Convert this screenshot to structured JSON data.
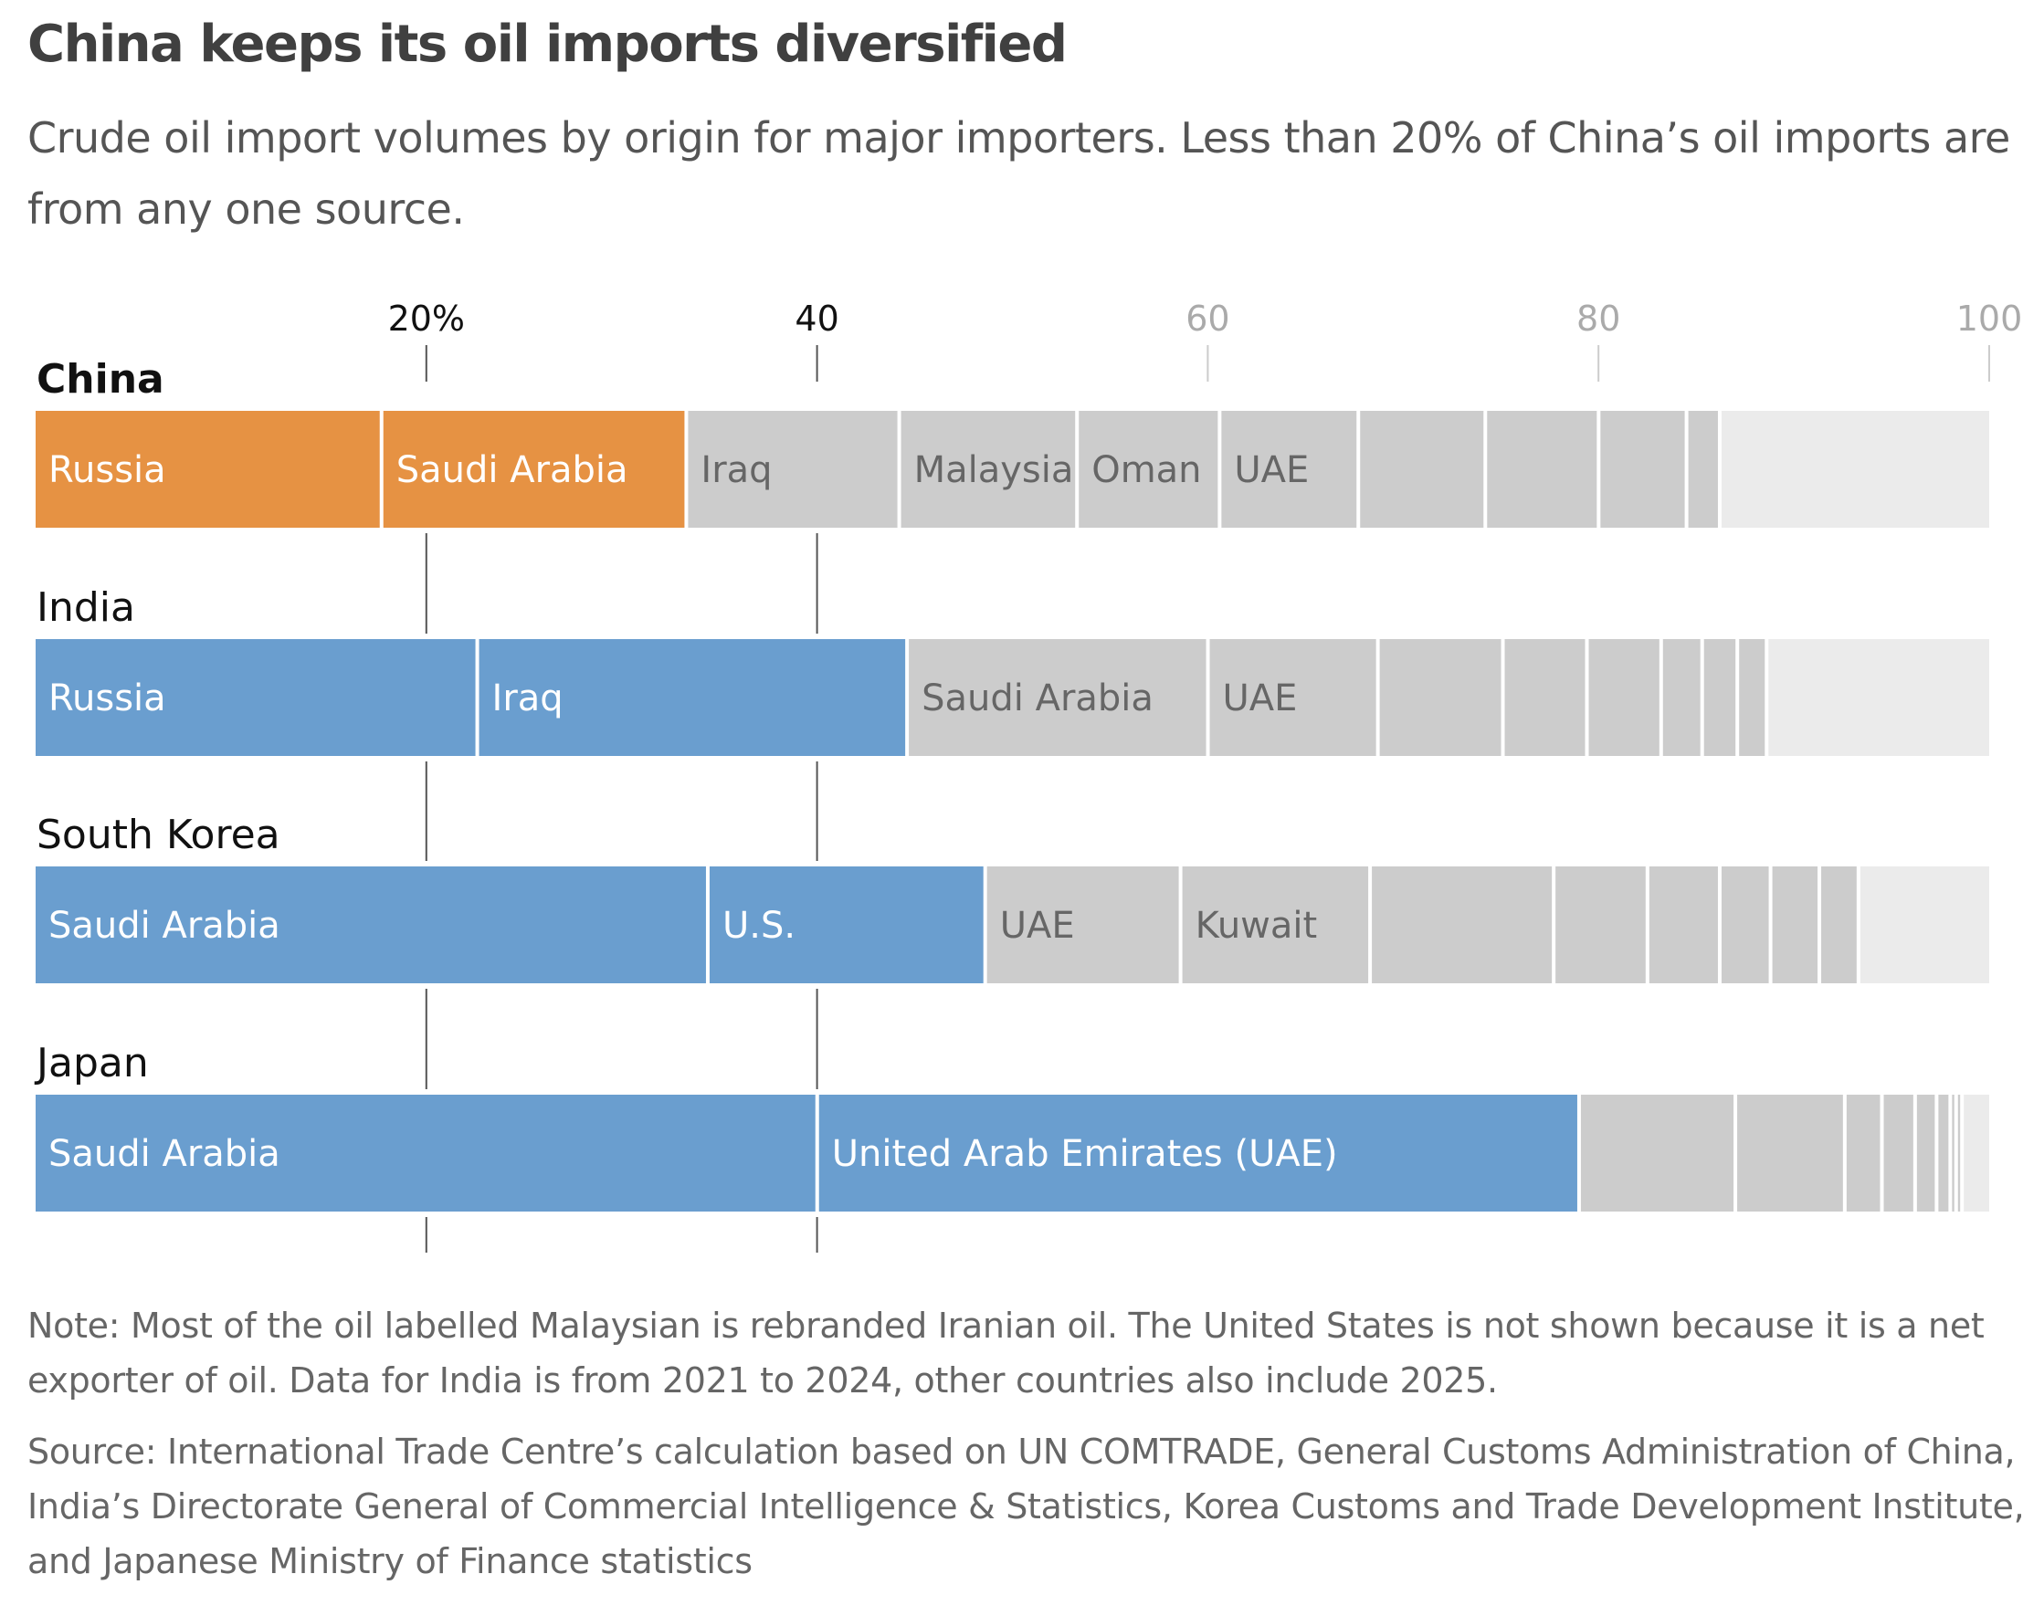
{
  "header": {
    "title": "China keeps its oil imports diversified",
    "subtitle": "Crude oil import volumes by origin for major importers. Less than 20% of China’s oil imports are from any one source."
  },
  "footer": {
    "note": "Note: Most of the oil labelled Malaysian is rebranded Iranian oil. The United States is not shown because it is a net exporter of oil. Data for India is from 2021 to 2024, other countries also include 2025.",
    "source": "Source: International Trade Centre’s calculation based on UN COMTRADE, General Customs Administration of China, India’s Directorate General of Commercial Intelligence & Statistics, Korea Customs and Trade Development Institute, and Japanese Ministry of Finance statistics"
  },
  "colors": {
    "china_highlight": "#E69243",
    "other_highlight": "#6A9ECF",
    "other_source": "#CCCCCC",
    "remainder": "#EBEBEB",
    "label_on_highlight": "#FFFFFF",
    "label_on_gray": "#666666",
    "grid_dark": "#555555",
    "grid_light": "#CCCCCC"
  },
  "chart_data": {
    "type": "bar",
    "subtype": "stacked-horizontal-100%",
    "title": "China keeps its oil imports diversified",
    "xlabel": "",
    "ylabel": "",
    "xlim": [
      0,
      100
    ],
    "x_unit": "% of crude oil imports",
    "ticks": [
      {
        "value": 20,
        "label": "20%",
        "emphasis": true
      },
      {
        "value": 40,
        "label": "40",
        "emphasis": true
      },
      {
        "value": 60,
        "label": "60",
        "emphasis": false
      },
      {
        "value": 80,
        "label": "80",
        "emphasis": false
      },
      {
        "value": 100,
        "label": "100",
        "emphasis": false
      }
    ],
    "grid": true,
    "series": [
      {
        "name": "China",
        "bold": true,
        "segments": [
          {
            "label": "Russia",
            "value": 17.8,
            "kind": "highlight"
          },
          {
            "label": "Saudi Arabia",
            "value": 15.6,
            "kind": "highlight"
          },
          {
            "label": "Iraq",
            "value": 10.9,
            "kind": "other"
          },
          {
            "label": "Malaysia",
            "value": 9.1,
            "kind": "other"
          },
          {
            "label": "Oman",
            "value": 7.3,
            "kind": "other"
          },
          {
            "label": "UAE",
            "value": 7.1,
            "kind": "other"
          },
          {
            "label": "",
            "value": 6.5,
            "kind": "other"
          },
          {
            "label": "",
            "value": 5.8,
            "kind": "other"
          },
          {
            "label": "",
            "value": 4.5,
            "kind": "other"
          },
          {
            "label": "",
            "value": 1.7,
            "kind": "other"
          },
          {
            "label": "",
            "value": 13.7,
            "kind": "rest"
          }
        ]
      },
      {
        "name": "India",
        "bold": false,
        "segments": [
          {
            "label": "Russia",
            "value": 22.7,
            "kind": "highlight"
          },
          {
            "label": "Iraq",
            "value": 22.0,
            "kind": "highlight"
          },
          {
            "label": "Saudi Arabia",
            "value": 15.4,
            "kind": "other"
          },
          {
            "label": "UAE",
            "value": 8.7,
            "kind": "other"
          },
          {
            "label": "",
            "value": 6.4,
            "kind": "other"
          },
          {
            "label": "",
            "value": 4.3,
            "kind": "other"
          },
          {
            "label": "",
            "value": 3.8,
            "kind": "other"
          },
          {
            "label": "",
            "value": 2.1,
            "kind": "other"
          },
          {
            "label": "",
            "value": 1.8,
            "kind": "other"
          },
          {
            "label": "",
            "value": 1.5,
            "kind": "other"
          },
          {
            "label": "",
            "value": 11.3,
            "kind": "rest"
          }
        ]
      },
      {
        "name": "South Korea",
        "bold": false,
        "segments": [
          {
            "label": "Saudi Arabia",
            "value": 34.5,
            "kind": "highlight"
          },
          {
            "label": "U.S.",
            "value": 14.2,
            "kind": "highlight"
          },
          {
            "label": "UAE",
            "value": 10.0,
            "kind": "other"
          },
          {
            "label": "Kuwait",
            "value": 9.7,
            "kind": "other"
          },
          {
            "label": "",
            "value": 9.4,
            "kind": "other"
          },
          {
            "label": "",
            "value": 4.8,
            "kind": "other"
          },
          {
            "label": "",
            "value": 3.7,
            "kind": "other"
          },
          {
            "label": "",
            "value": 2.6,
            "kind": "other"
          },
          {
            "label": "",
            "value": 2.5,
            "kind": "other"
          },
          {
            "label": "",
            "value": 2.0,
            "kind": "other"
          },
          {
            "label": "",
            "value": 6.6,
            "kind": "rest"
          }
        ]
      },
      {
        "name": "Japan",
        "bold": false,
        "segments": [
          {
            "label": "Saudi Arabia",
            "value": 40.1,
            "kind": "highlight"
          },
          {
            "label": "United Arab Emirates (UAE)",
            "value": 39.0,
            "kind": "highlight"
          },
          {
            "label": "",
            "value": 8.0,
            "kind": "other"
          },
          {
            "label": "",
            "value": 5.6,
            "kind": "other"
          },
          {
            "label": "",
            "value": 1.9,
            "kind": "other"
          },
          {
            "label": "",
            "value": 1.7,
            "kind": "other"
          },
          {
            "label": "",
            "value": 1.1,
            "kind": "other"
          },
          {
            "label": "",
            "value": 0.7,
            "kind": "other"
          },
          {
            "label": "",
            "value": 0.3,
            "kind": "other"
          },
          {
            "label": "",
            "value": 0.3,
            "kind": "other"
          },
          {
            "label": "",
            "value": 1.3,
            "kind": "rest"
          }
        ]
      }
    ],
    "annotations": [
      "Note: Most of the oil labelled Malaysian is rebranded Iranian oil. The United States is not shown because it is a net exporter of oil. Data for India is from 2021 to 2024, other countries also include 2025."
    ]
  }
}
